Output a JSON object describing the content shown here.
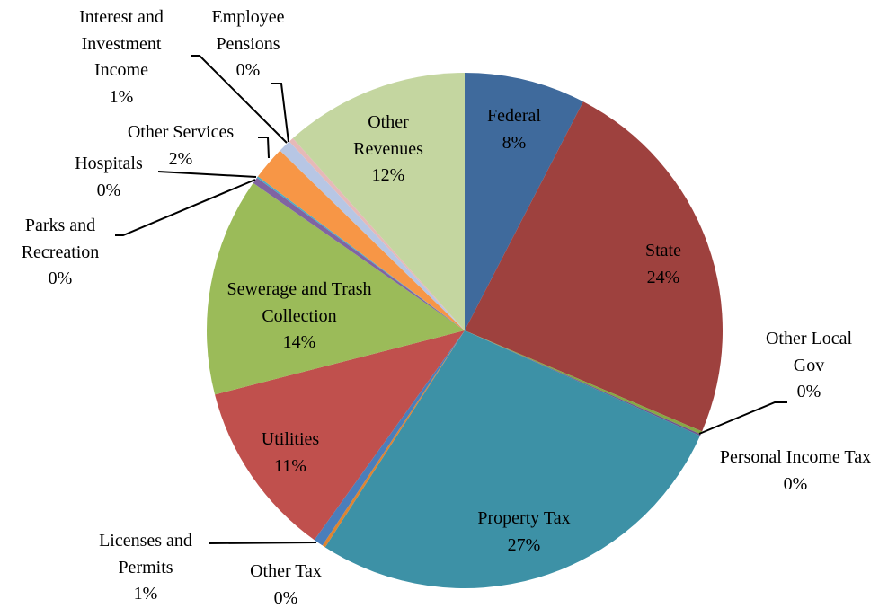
{
  "chart_data": {
    "type": "pie",
    "categories": [
      "Federal",
      "State",
      "Other Local Gov",
      "Personal Income Tax",
      "Property Tax",
      "Other Tax",
      "Licenses and Permits",
      "Utilities",
      "Sewerage and Trash Collection",
      "Parks and Recreation",
      "Hospitals",
      "Other Services",
      "Interest and Investment Income",
      "Employee Pensions",
      "Other Revenues"
    ],
    "values": [
      7.6,
      23.8,
      0.2,
      0.1,
      27.4,
      0.2,
      0.6,
      11.1,
      13.7,
      0.4,
      0.1,
      2.1,
      0.8,
      0.3,
      11.6
    ],
    "value_labels": [
      "8%",
      "24%",
      "0%",
      "0%",
      "27%",
      "0%",
      "1%",
      "11%",
      "14%",
      "0%",
      "0%",
      "2%",
      "1%",
      "0%",
      "12%"
    ],
    "colors": [
      "#3f6a9c",
      "#9e413e",
      "#86a844",
      "#6e548d",
      "#3d91a6",
      "#de8431",
      "#4a7ebb",
      "#c0504d",
      "#9bbb59",
      "#8064a2",
      "#4bacc6",
      "#f79646",
      "#b7c6e4",
      "#e6b9b8",
      "#c4d6a0"
    ]
  }
}
